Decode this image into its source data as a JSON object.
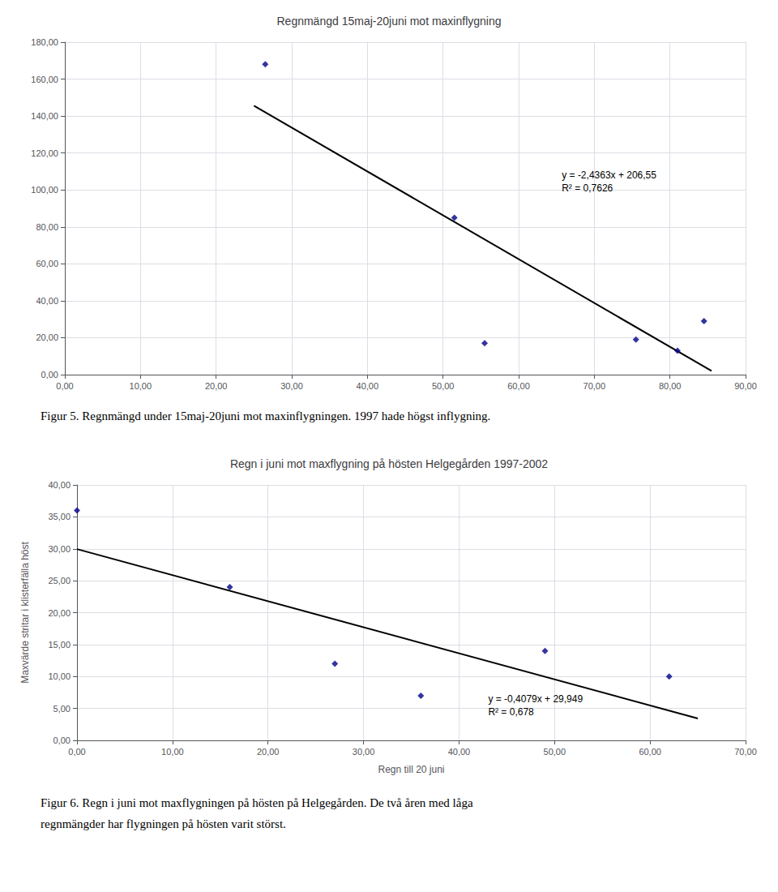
{
  "chart_data": [
    {
      "type": "scatter",
      "title": "Regnmängd 15maj-20juni mot maxinflygning",
      "series": [
        {
          "type": "scatter",
          "color": "#00008B",
          "marker": "diamond",
          "x": [
            26.5,
            51.5,
            55.5,
            75.5,
            81.0,
            84.5
          ],
          "values": [
            168.0,
            85.0,
            17.0,
            19.0,
            13.0,
            29.0
          ]
        },
        {
          "type": "line",
          "color": "#000000",
          "line_style": "solid",
          "x": [
            25.0,
            85.5
          ],
          "values": [
            145.6,
            2.0
          ]
        }
      ],
      "annotations": [
        "y = -2,4363x + 206,55",
        "R² = 0,7626"
      ],
      "xlim": [
        0,
        90
      ],
      "ylim": [
        0,
        180
      ],
      "xticks": [
        {
          "value": 0,
          "label": "0,00"
        },
        {
          "value": 10,
          "label": "10,00"
        },
        {
          "value": 20,
          "label": "20,00"
        },
        {
          "value": 30,
          "label": "30,00"
        },
        {
          "value": 40,
          "label": "40,00"
        },
        {
          "value": 50,
          "label": "50,00"
        },
        {
          "value": 60,
          "label": "60,00"
        },
        {
          "value": 70,
          "label": "70,00"
        },
        {
          "value": 80,
          "label": "80,00"
        },
        {
          "value": 90,
          "label": "90,00"
        }
      ],
      "yticks": [
        {
          "value": 0,
          "label": "0,00"
        },
        {
          "value": 20,
          "label": "20,00"
        },
        {
          "value": 40,
          "label": "40,00"
        },
        {
          "value": 60,
          "label": "60,00"
        },
        {
          "value": 80,
          "label": "80,00"
        },
        {
          "value": 100,
          "label": "100,00"
        },
        {
          "value": 120,
          "label": "120,00"
        },
        {
          "value": 140,
          "label": "140,00"
        },
        {
          "value": 160,
          "label": "160,00"
        },
        {
          "value": 180,
          "label": "180,00"
        }
      ],
      "grid": true,
      "caption": [
        "Figur 5. Regnmängd under 15maj-20juni mot maxinflygningen. 1997 hade högst inflygning."
      ]
    },
    {
      "type": "scatter",
      "title": "Regn i juni mot maxflygning på hösten Helgegården 1997-2002",
      "xlabel": "Regn till 20 juni",
      "ylabel": "Maxvärde stritar i klisterfälla höst",
      "series": [
        {
          "type": "scatter",
          "color": "#00008B",
          "marker": "diamond",
          "x": [
            0.0,
            16.0,
            27.0,
            36.0,
            49.0,
            62.0
          ],
          "values": [
            36.0,
            24.0,
            12.0,
            7.0,
            14.0,
            10.0
          ]
        },
        {
          "type": "line",
          "color": "#000000",
          "line_style": "solid",
          "x": [
            0.0,
            65.0
          ],
          "values": [
            29.949,
            3.435
          ]
        }
      ],
      "annotations": [
        "y = -0,4079x + 29,949",
        "R² = 0,678"
      ],
      "xlim": [
        0,
        70
      ],
      "ylim": [
        0,
        40
      ],
      "xticks": [
        {
          "value": 0,
          "label": "0,00"
        },
        {
          "value": 10,
          "label": "10,00"
        },
        {
          "value": 20,
          "label": "20,00"
        },
        {
          "value": 30,
          "label": "30,00"
        },
        {
          "value": 40,
          "label": "40,00"
        },
        {
          "value": 50,
          "label": "50,00"
        },
        {
          "value": 60,
          "label": "60,00"
        },
        {
          "value": 70,
          "label": "70,00"
        }
      ],
      "yticks": [
        {
          "value": 0,
          "label": "0,00"
        },
        {
          "value": 5,
          "label": "5,00"
        },
        {
          "value": 10,
          "label": "10,00"
        },
        {
          "value": 15,
          "label": "15,00"
        },
        {
          "value": 20,
          "label": "20,00"
        },
        {
          "value": 25,
          "label": "25,00"
        },
        {
          "value": 30,
          "label": "30,00"
        },
        {
          "value": 35,
          "label": "35,00"
        },
        {
          "value": 40,
          "label": "40,00"
        }
      ],
      "grid": true,
      "caption": [
        "Figur 6. Regn i juni mot maxflygningen på hösten på Helgegården. De två åren med låga",
        "regnmängder har flygningen på hösten varit störst."
      ]
    }
  ]
}
